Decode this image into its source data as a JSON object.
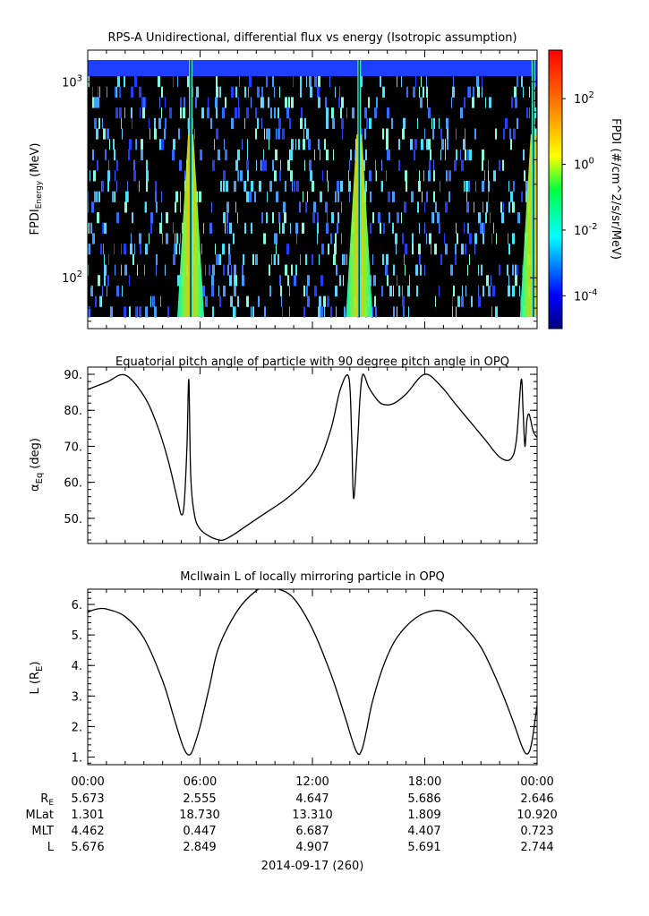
{
  "chart_data": [
    {
      "type": "heatmap",
      "title": "RPS-A Unidirectional, differential flux vs energy (Isotropic assumption)",
      "ylabel_main": "FPDI",
      "ylabel_sub": "Energy",
      "ylabel_unit": "(MeV)",
      "y_scale": "log",
      "ylim": [
        55,
        1450
      ],
      "yticks": [
        {
          "value": 100,
          "base": "10",
          "exp": "2"
        },
        {
          "value": 1000,
          "base": "10",
          "exp": "3"
        }
      ],
      "colorbar": {
        "label": "FPDI (#/cm^2/s/sr/MeV)",
        "scale": "log",
        "range": [
          1e-05,
          3000
        ],
        "ticks": [
          {
            "value": 0.0001,
            "base": "10",
            "exp": "-4"
          },
          {
            "value": 0.01,
            "base": "10",
            "exp": "-2"
          },
          {
            "value": 1,
            "base": "10",
            "exp": "0"
          },
          {
            "value": 100,
            "base": "10",
            "exp": "2"
          }
        ]
      },
      "bright_bands_hours": [
        5.5,
        14.5,
        23.8
      ],
      "background": "black"
    },
    {
      "type": "line",
      "title": "Equatorial pitch angle of particle with 90 degree pitch angle in OPQ",
      "ylabel_symbol": "α",
      "ylabel_sub": "Eq",
      "ylabel_unit": "(deg)",
      "ylim": [
        43,
        92
      ],
      "yticks": [
        "50.",
        "60.",
        "70.",
        "80.",
        "90."
      ],
      "x_hours": [
        0,
        1,
        2,
        3,
        3.7,
        4.3,
        4.8,
        5.0,
        5.15,
        5.3,
        5.4,
        5.5,
        5.7,
        6.0,
        6.5,
        7.0,
        7.3,
        7.8,
        8.5,
        9.5,
        10.5,
        11.5,
        12.3,
        13.0,
        13.5,
        13.95,
        14.1,
        14.2,
        14.4,
        14.55,
        14.7,
        15.0,
        15.3,
        15.7,
        16.3,
        17.0,
        18.0,
        18.9,
        19.6,
        20.4,
        21.2,
        22.0,
        22.6,
        22.9,
        23.15,
        23.25,
        23.35,
        23.45,
        23.55,
        23.65,
        23.75,
        23.85,
        24.0
      ],
      "y_deg": [
        85.8,
        87.8,
        89.8,
        84.0,
        76.0,
        66.0,
        55.0,
        51.0,
        54.0,
        70.0,
        88.5,
        62.0,
        51.0,
        47.0,
        45.0,
        44.0,
        44.1,
        45.5,
        48.0,
        51.5,
        55.0,
        59.5,
        65.0,
        75.0,
        86.0,
        89.0,
        72.0,
        55.5,
        70.0,
        84.0,
        90.0,
        86.5,
        84.0,
        81.8,
        81.8,
        84.5,
        90.0,
        86.5,
        82.0,
        77.0,
        72.0,
        67.0,
        66.5,
        72.0,
        88.5,
        80.0,
        70.0,
        77.0,
        79.0,
        77.5,
        75.0,
        73.5,
        72.5
      ],
      "xlim": [
        0,
        24
      ]
    },
    {
      "type": "line",
      "title": "McIlwain L of locally mirroring particle in OPQ",
      "ylabel_main": "L",
      "ylabel_unit_base": "R",
      "ylabel_unit_sub": "E",
      "ylim": [
        0.75,
        6.5
      ],
      "yticks": [
        "1.",
        "2.",
        "3.",
        "4.",
        "5.",
        "6."
      ],
      "x_hours": [
        0,
        0.5,
        1.0,
        2.0,
        3.0,
        4.0,
        4.6,
        5.0,
        5.2,
        5.35,
        5.5,
        5.65,
        6.0,
        6.5,
        7.0,
        8.0,
        9.0,
        9.6,
        10.2,
        11.0,
        12.0,
        13.0,
        13.7,
        14.1,
        14.3,
        14.45,
        14.55,
        14.7,
        14.9,
        15.2,
        15.8,
        16.5,
        17.5,
        18.5,
        19.3,
        20.0,
        21.0,
        22.0,
        22.7,
        23.1,
        23.3,
        23.45,
        23.6,
        23.75,
        24.0
      ],
      "y_L": [
        5.75,
        5.85,
        5.85,
        5.6,
        4.9,
        3.5,
        2.3,
        1.5,
        1.2,
        1.08,
        1.1,
        1.3,
        2.0,
        3.3,
        4.6,
        5.8,
        6.45,
        6.55,
        6.5,
        6.2,
        5.2,
        3.7,
        2.4,
        1.6,
        1.25,
        1.1,
        1.12,
        1.35,
        1.9,
        2.8,
        4.0,
        4.9,
        5.55,
        5.8,
        5.7,
        5.35,
        4.6,
        3.3,
        2.2,
        1.5,
        1.2,
        1.1,
        1.2,
        1.6,
        2.7
      ],
      "xlim": [
        0,
        24
      ]
    }
  ],
  "x_axis": {
    "tick_labels": [
      "00:00",
      "06:00",
      "12:00",
      "18:00",
      "00:00"
    ],
    "date_label": "2014-09-17 (260)"
  },
  "ephemeris": {
    "rows": [
      {
        "label": "R",
        "label_sub": "E",
        "values": [
          "5.673",
          "2.555",
          "4.647",
          "5.686",
          "2.646"
        ]
      },
      {
        "label": "MLat",
        "label_sub": "",
        "values": [
          "1.301",
          "18.730",
          "13.310",
          "1.809",
          "10.920"
        ]
      },
      {
        "label": "MLT",
        "label_sub": "",
        "values": [
          "4.462",
          "0.447",
          "6.687",
          "4.407",
          "0.723"
        ]
      },
      {
        "label": "L",
        "label_sub": "",
        "values": [
          "5.676",
          "2.849",
          "4.907",
          "5.691",
          "2.744"
        ]
      }
    ]
  }
}
